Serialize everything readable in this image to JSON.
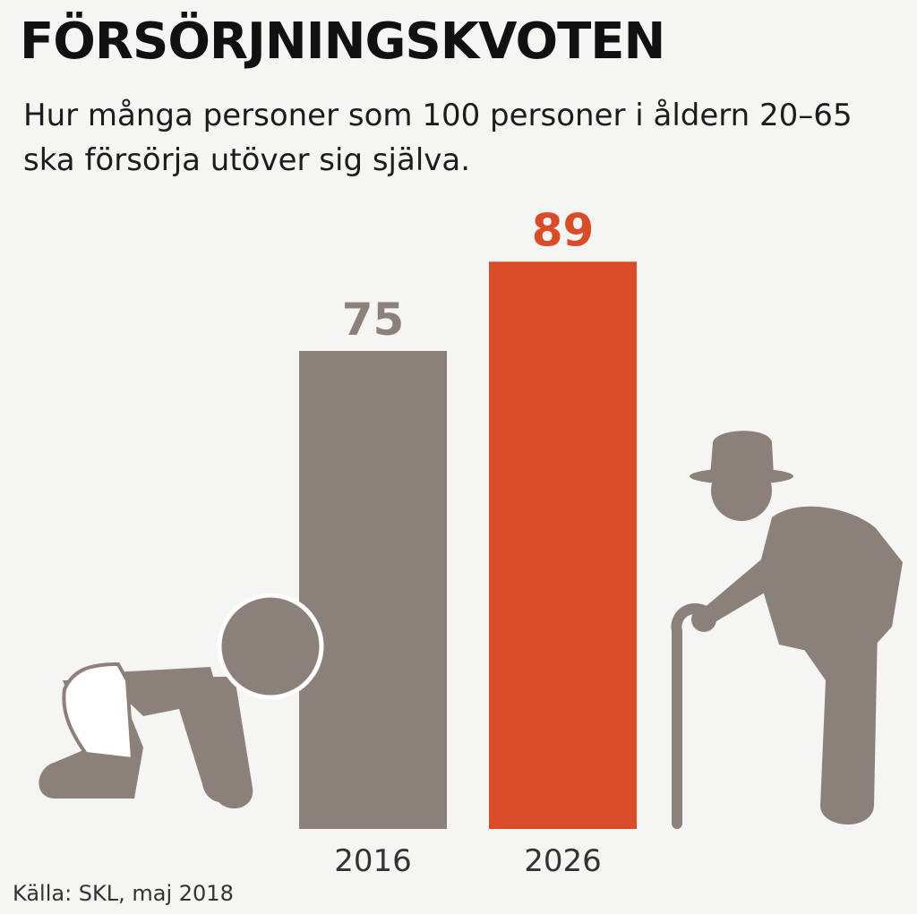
{
  "title": "FÖRSÖRJNINGSKVOTEN",
  "subtitle": "Hur många personer som 100 personer i åldern 20–65 ska försörja utöver sig själva.",
  "source": "Källa: SKL, maj 2018",
  "colors": {
    "bar_2016": "#8c817a",
    "bar_2026": "#d94c27",
    "label_2016": "#8c817a",
    "label_2026": "#d94c27",
    "figure": "#8c817a"
  },
  "icons": [
    "crawling-baby-icon",
    "elderly-man-with-cane-icon"
  ],
  "chart_data": {
    "type": "bar",
    "categories": [
      "2016",
      "2026"
    ],
    "values": [
      75,
      89
    ],
    "title": "FÖRSÖRJNINGSKVOTEN",
    "xlabel": "",
    "ylabel": "",
    "grid": false,
    "legend": "none"
  }
}
